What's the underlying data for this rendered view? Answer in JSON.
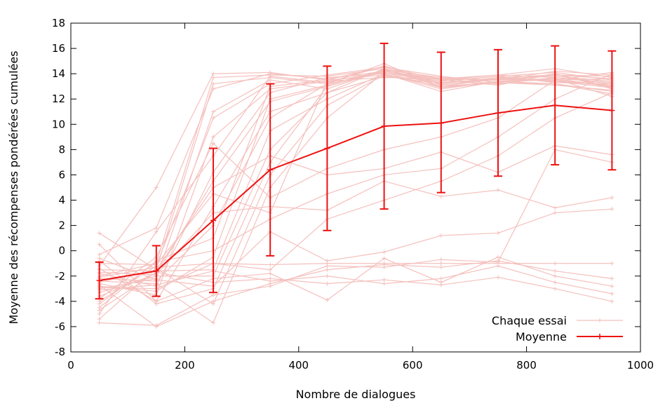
{
  "chart_data": {
    "type": "line",
    "title": "",
    "xlabel": "Nombre de dialogues",
    "ylabel": "Moyenne des récompenses pondérées cumulées",
    "xlim": [
      0,
      1000
    ],
    "ylim": [
      -8,
      18
    ],
    "x_ticks": [
      0,
      200,
      400,
      600,
      800,
      1000
    ],
    "y_ticks": [
      -8,
      -6,
      -4,
      -2,
      0,
      2,
      4,
      6,
      8,
      10,
      12,
      14,
      16,
      18
    ],
    "grid": false,
    "legend_position": "bottom-right",
    "x": [
      50,
      150,
      250,
      350,
      450,
      550,
      650,
      750,
      850,
      950
    ],
    "trials_color": "#f4c0bd",
    "mean_color": "#ee1111",
    "series": [
      {
        "name": "Chaque essai",
        "style": "trials",
        "runs": [
          [
            -1.2,
            5.0,
            14.0,
            14.1,
            13.5,
            14.6,
            13.2,
            13.7,
            13.9,
            13.6
          ],
          [
            -2.0,
            -1.0,
            13.7,
            13.9,
            13.8,
            14.4,
            13.6,
            13.5,
            14.2,
            13.9
          ],
          [
            1.4,
            -1.5,
            13.2,
            13.7,
            13.2,
            14.8,
            12.9,
            13.4,
            13.5,
            14.1
          ],
          [
            -0.3,
            1.8,
            12.8,
            14.0,
            13.6,
            14.2,
            13.4,
            13.8,
            13.3,
            13.2
          ],
          [
            -3.0,
            -2.2,
            11.0,
            13.5,
            12.8,
            14.3,
            13.0,
            13.6,
            13.8,
            13.4
          ],
          [
            -4.0,
            -1.2,
            10.5,
            13.2,
            13.9,
            14.5,
            13.8,
            13.3,
            14.0,
            12.8
          ],
          [
            -2.6,
            -3.5,
            9.0,
            12.8,
            13.4,
            14.1,
            13.3,
            13.5,
            13.6,
            13.0
          ],
          [
            -5.0,
            1.5,
            7.5,
            13.8,
            13.3,
            14.6,
            13.5,
            13.9,
            14.4,
            13.7
          ],
          [
            -1.8,
            -2.8,
            6.2,
            12.5,
            13.7,
            14.0,
            12.8,
            13.4,
            13.2,
            12.6
          ],
          [
            -3.6,
            -1.8,
            5.5,
            11.8,
            13.0,
            14.2,
            13.6,
            13.2,
            13.7,
            13.3
          ],
          [
            0.5,
            -4.0,
            3.5,
            11.0,
            12.5,
            14.4,
            13.1,
            13.6,
            13.4,
            12.9
          ],
          [
            -2.2,
            -2.4,
            2.0,
            10.5,
            13.2,
            14.1,
            13.4,
            13.8,
            14.1,
            13.5
          ],
          [
            -4.5,
            -0.8,
            1.0,
            13.0,
            13.5,
            13.9,
            13.0,
            13.3,
            13.2,
            12.4
          ],
          [
            -2.8,
            -3.2,
            -0.5,
            12.0,
            13.1,
            14.3,
            13.7,
            13.5,
            13.9,
            13.8
          ],
          [
            -1.5,
            -1.6,
            -1.5,
            9.5,
            12.0,
            14.0,
            12.6,
            13.4,
            13.6,
            12.2
          ],
          [
            -3.3,
            -2.0,
            -2.0,
            8.0,
            12.5,
            13.8,
            13.2,
            13.7,
            13.4,
            13.1
          ],
          [
            -0.8,
            -4.2,
            -3.0,
            7.0,
            13.0,
            14.2,
            13.5,
            13.1,
            14.0,
            12.9
          ],
          [
            -5.4,
            -1.4,
            -4.2,
            6.0,
            11.5,
            13.9,
            13.3,
            13.6,
            13.5,
            13.6
          ],
          [
            -2.4,
            -2.6,
            -5.7,
            5.0,
            10.5,
            14.1,
            12.9,
            13.3,
            13.1,
            12.7
          ],
          [
            -1.0,
            -1.1,
            4.5,
            3.0,
            13.4,
            13.7,
            13.6,
            13.9,
            13.7,
            13.2
          ],
          [
            -3.8,
            -0.5,
            8.5,
            4.2,
            6.5,
            8.0,
            9.0,
            10.5,
            13.5,
            13.0
          ],
          [
            -2.5,
            -1.5,
            5.0,
            7.5,
            6.0,
            6.5,
            7.8,
            6.2,
            8.3,
            7.6
          ],
          [
            -1.7,
            -1.9,
            3.0,
            3.5,
            3.2,
            5.5,
            4.3,
            4.8,
            3.4,
            4.2
          ],
          [
            -4.2,
            -0.9,
            0.0,
            2.5,
            4.5,
            6.0,
            6.5,
            9.0,
            12.0,
            14.0
          ],
          [
            -2.9,
            -3.0,
            -1.0,
            -1.5,
            2.5,
            4.0,
            5.5,
            7.5,
            10.5,
            12.5
          ],
          [
            -0.6,
            -2.3,
            -2.8,
            1.5,
            -0.8,
            -0.1,
            1.2,
            1.4,
            3.0,
            3.3
          ],
          [
            -5.7,
            -5.9,
            -3.5,
            -2.8,
            -1.2,
            -1.3,
            -0.7,
            -0.9,
            8.0,
            7.0
          ],
          [
            -2.1,
            -1.3,
            -1.0,
            -1.1,
            -1.0,
            -1.0,
            -1.0,
            -1.0,
            -1.0,
            -1.0
          ],
          [
            -1.4,
            -4.0,
            -2.2,
            -1.8,
            -3.9,
            -0.6,
            -2.5,
            -0.5,
            -2.0,
            -2.8
          ],
          [
            -3.1,
            -2.7,
            -1.6,
            -2.4,
            -2.0,
            -2.6,
            -2.2,
            -1.2,
            -2.5,
            -3.4
          ],
          [
            -4.7,
            -1.7,
            -2.5,
            -2.2,
            -2.6,
            -2.3,
            -2.7,
            -2.1,
            -3.0,
            -4.0
          ],
          [
            -2.7,
            -6.0,
            -4.0,
            -2.6,
            -1.5,
            -1.1,
            -1.3,
            -0.8,
            -1.6,
            -2.2
          ]
        ]
      },
      {
        "name": "Moyenne",
        "style": "mean",
        "values": [
          -2.35,
          -1.6,
          2.4,
          6.4,
          8.1,
          9.85,
          10.1,
          10.9,
          11.5,
          11.1
        ],
        "err_low": [
          -3.8,
          -3.6,
          -3.3,
          -0.4,
          1.6,
          3.3,
          4.6,
          5.9,
          6.8,
          6.4
        ],
        "err_high": [
          -0.9,
          0.4,
          8.1,
          13.2,
          14.6,
          16.4,
          15.7,
          15.9,
          16.2,
          15.8
        ]
      }
    ]
  }
}
